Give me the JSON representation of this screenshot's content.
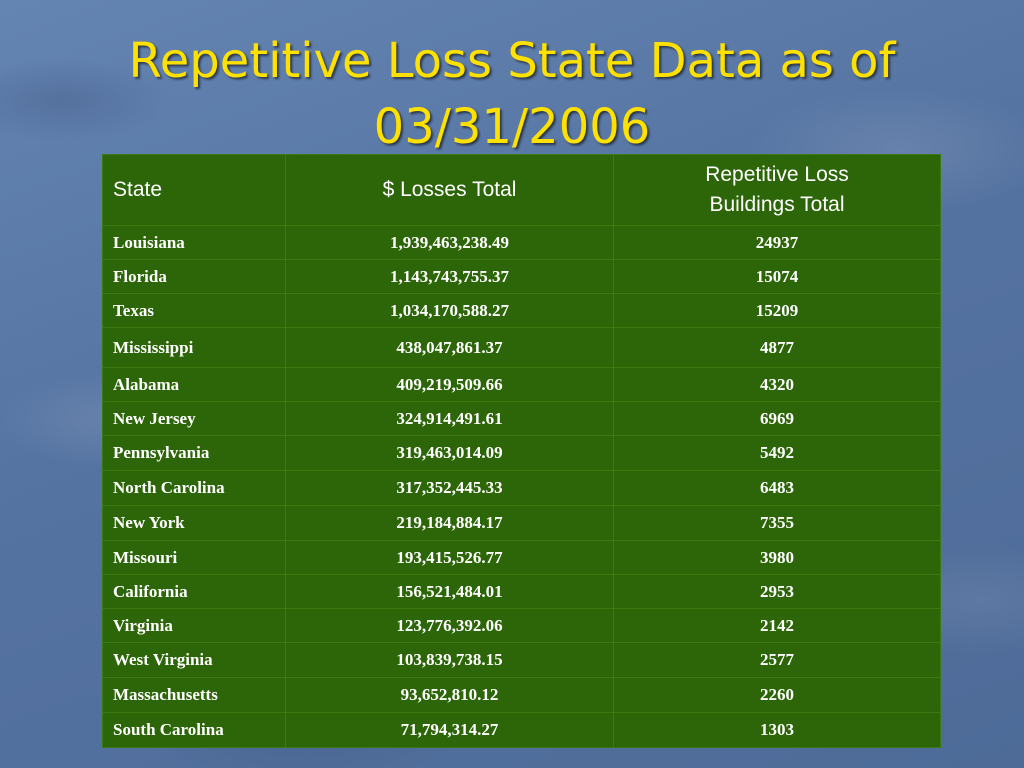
{
  "slide": {
    "title_line1": "Repetitive Loss State Data as of",
    "title_line2": "03/31/2006"
  },
  "table": {
    "headers": {
      "state": "State",
      "losses": "$ Losses Total",
      "buildings": "Repetitive Loss\n    Buildings Total"
    },
    "rows": [
      {
        "state": "Louisiana",
        "losses": "1,939,463,238.49",
        "buildings": "24937"
      },
      {
        "state": "Florida",
        "losses": "1,143,743,755.37",
        "buildings": "15074"
      },
      {
        "state": "Texas",
        "losses": "1,034,170,588.27",
        "buildings": "15209"
      },
      {
        "state": "Mississippi",
        "losses": "438,047,861.37",
        "buildings": "4877"
      },
      {
        "state": "Alabama",
        "losses": "409,219,509.66",
        "buildings": "4320"
      },
      {
        "state": "New Jersey",
        "losses": "324,914,491.61",
        "buildings": "6969"
      },
      {
        "state": "Pennsylvania",
        "losses": "319,463,014.09",
        "buildings": "5492"
      },
      {
        "state": "North Carolina",
        "losses": "317,352,445.33",
        "buildings": "6483"
      },
      {
        "state": "New York",
        "losses": "219,184,884.17",
        "buildings": "7355"
      },
      {
        "state": "Missouri",
        "losses": "193,415,526.77",
        "buildings": "3980"
      },
      {
        "state": "California",
        "losses": "156,521,484.01",
        "buildings": "2953"
      },
      {
        "state": "Virginia",
        "losses": "123,776,392.06",
        "buildings": "2142"
      },
      {
        "state": "West Virginia",
        "losses": "103,839,738.15",
        "buildings": "2577"
      },
      {
        "state": "Massachusetts",
        "losses": "93,652,810.12",
        "buildings": "2260"
      },
      {
        "state": "South Carolina",
        "losses": "71,794,314.27",
        "buildings": "1303"
      }
    ]
  },
  "colors": {
    "title": "#ffe100",
    "table_background": "#2d6609",
    "slide_background": "#5a7aa8"
  }
}
